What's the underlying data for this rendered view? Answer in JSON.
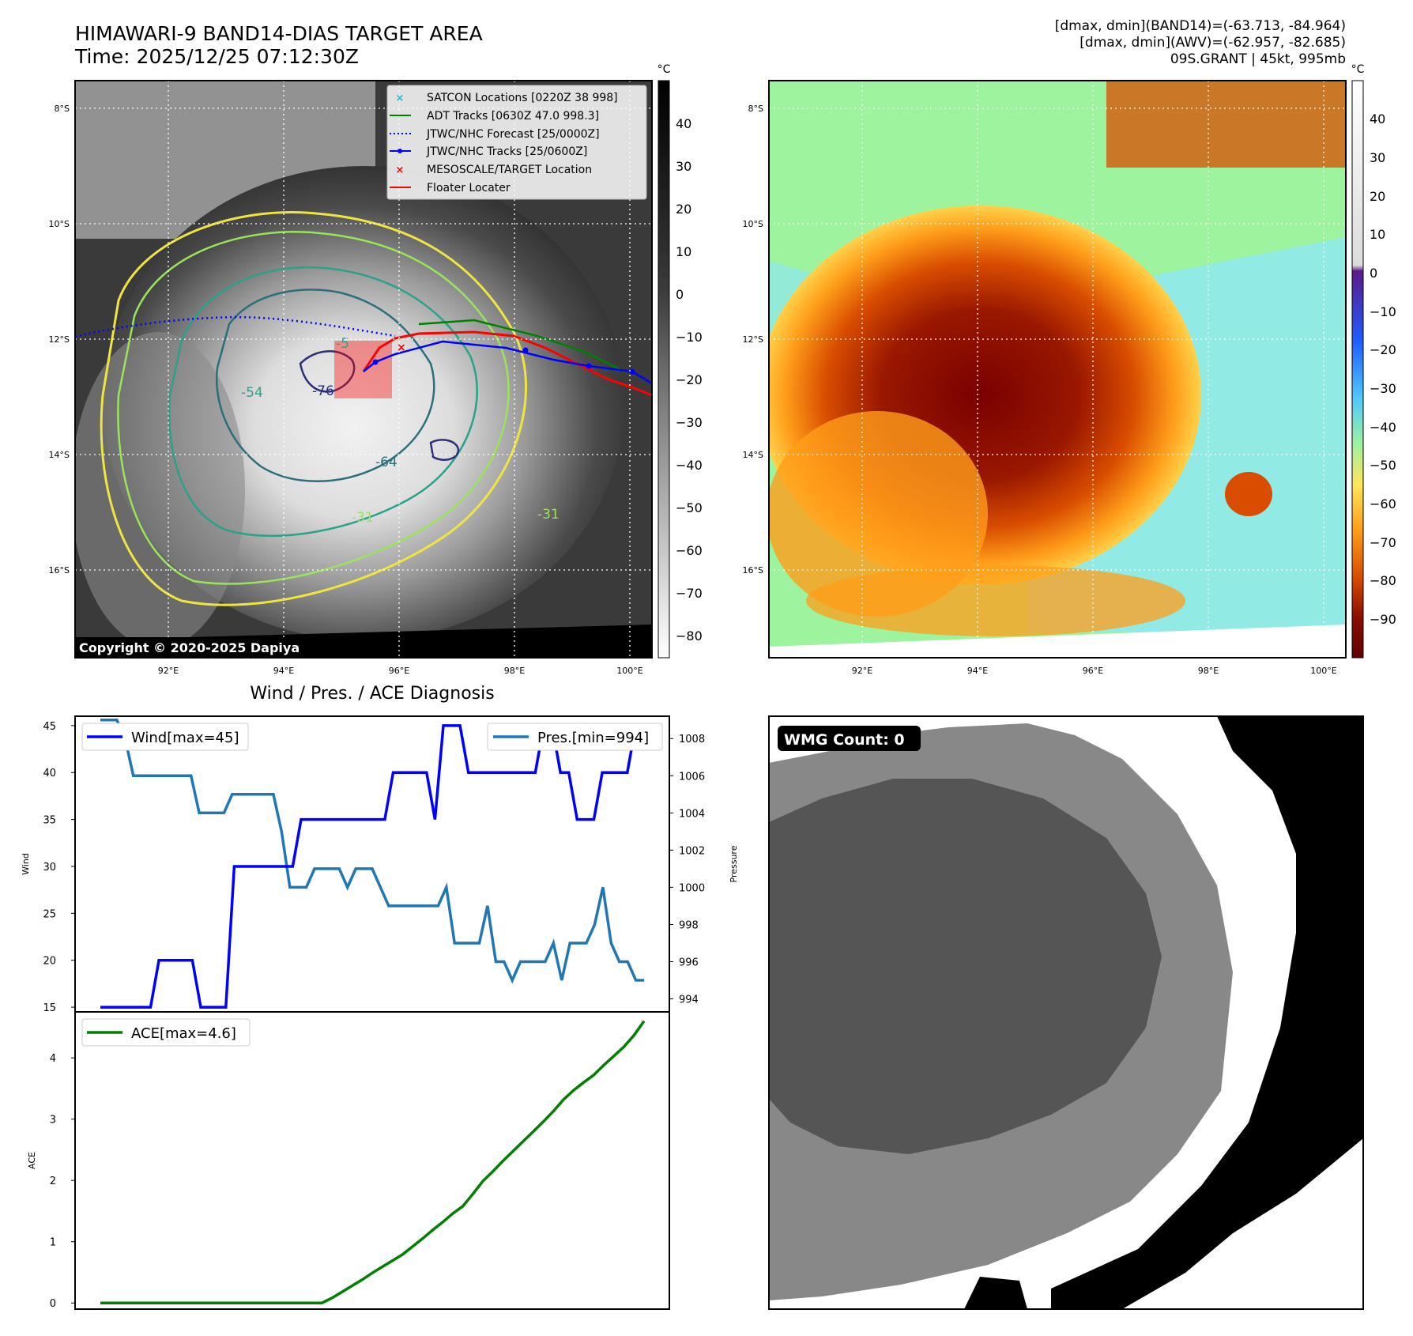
{
  "header": {
    "title_line1": "HIMAWARI-9 BAND14-DIAS TARGET AREA",
    "title_line2": "Time: 2025/12/25 07:12:30Z",
    "info_line1": "[dmax, dmin](BAND14)=(-63.713, -84.964)",
    "info_line2": "[dmax, dmin](AWV)=(-62.957, -82.685)",
    "info_line3": "09S.GRANT | 45kt, 995mb"
  },
  "map": {
    "lat_labels": [
      "8°S",
      "10°S",
      "12°S",
      "14°S",
      "16°S"
    ],
    "lon_labels": [
      "92°E",
      "94°E",
      "96°E",
      "98°E",
      "100°E"
    ],
    "copyright": "Copyright © 2020-2025 Dapiya",
    "contour_labels": [
      "-76",
      "-64",
      "-54",
      "-31",
      "-5",
      "-31"
    ],
    "legend": [
      {
        "label": "SATCON Locations [0220Z 38 998]",
        "color": "#17becf",
        "style": "x"
      },
      {
        "label": "ADT Tracks [0630Z 47.0 998.3]",
        "color": "#008000",
        "style": "line"
      },
      {
        "label": "JTWC/NHC Forecast [25/0000Z]",
        "color": "#0000ff",
        "style": "dotted"
      },
      {
        "label": "JTWC/NHC Tracks [25/0600Z]",
        "color": "#0000ff",
        "style": "line-dot"
      },
      {
        "label": "MESOSCALE/TARGET Location",
        "color": "#ff0000",
        "style": "x"
      },
      {
        "label": "Floater Locater",
        "color": "#ff0000",
        "style": "line"
      }
    ]
  },
  "colorbar_left": {
    "unit": "°C",
    "ticks": [
      "40",
      "30",
      "20",
      "10",
      "0",
      "−10",
      "−20",
      "−30",
      "−40",
      "−50",
      "−60",
      "−70",
      "−80"
    ]
  },
  "colorbar_right": {
    "unit": "°C",
    "ticks": [
      "40",
      "30",
      "20",
      "10",
      "0",
      "−10",
      "−20",
      "−30",
      "−40",
      "−50",
      "−60",
      "−70",
      "−80",
      "−90"
    ]
  },
  "diagnosis": {
    "title": "Wind / Pres. / ACE Diagnosis"
  },
  "wmg": {
    "label": "WMG Count: 0"
  },
  "colors": {
    "wind": "#0000ff",
    "pressure": "#1f77b4",
    "ace": "#008000",
    "grid": "#ffffff"
  },
  "chart_data": [
    {
      "type": "line",
      "title": "",
      "xlabel": "",
      "ylabel": "Wind",
      "ylim": [
        14.5,
        46
      ],
      "y_ticks": [
        15,
        20,
        25,
        30,
        35,
        40,
        45
      ],
      "series": [
        {
          "name": "Wind[max=45]",
          "color": "#0000ff",
          "values": [
            15,
            15,
            15,
            15,
            15,
            15,
            15,
            20,
            20,
            20,
            20,
            20,
            15,
            15,
            15,
            15,
            30,
            30,
            30,
            30,
            30,
            30,
            30,
            30,
            35,
            35,
            35,
            35,
            35,
            35,
            35,
            35,
            35,
            35,
            35,
            40,
            40,
            40,
            40,
            40,
            35,
            45,
            45,
            45,
            40,
            40,
            40,
            40,
            40,
            40,
            40,
            40,
            40,
            45,
            45,
            40,
            40,
            35,
            35,
            35,
            40,
            40,
            40,
            40,
            45,
            45
          ]
        }
      ]
    },
    {
      "type": "line",
      "title": "",
      "xlabel": "",
      "ylabel": "Pressure",
      "ylim": [
        993.3,
        1009.2
      ],
      "y_ticks": [
        994,
        996,
        998,
        1000,
        1002,
        1004,
        1006,
        1008
      ],
      "series": [
        {
          "name": "Pres.[min=994]",
          "color": "#1f77b4",
          "values": [
            1009,
            1009,
            1009,
            1008,
            1006,
            1006,
            1006,
            1006,
            1006,
            1006,
            1006,
            1006,
            1004,
            1004,
            1004,
            1004,
            1005,
            1005,
            1005,
            1005,
            1005,
            1005,
            1003,
            1000,
            1000,
            1000,
            1001,
            1001,
            1001,
            1001,
            1000,
            1001,
            1001,
            1001,
            1000,
            999,
            999,
            999,
            999,
            999,
            999,
            999,
            1000,
            997,
            997,
            997,
            997,
            999,
            996,
            996,
            995,
            996,
            996,
            996,
            996,
            997,
            995,
            997,
            997,
            997,
            998,
            1000,
            997,
            996,
            996,
            995,
            995
          ]
        }
      ]
    },
    {
      "type": "line",
      "title": "",
      "xlabel": "",
      "ylabel": "ACE",
      "ylim": [
        -0.1,
        4.75
      ],
      "y_ticks": [
        0,
        1,
        2,
        3,
        4
      ],
      "series": [
        {
          "name": "ACE[max=4.6]",
          "color": "#008000",
          "values": [
            0,
            0,
            0,
            0,
            0,
            0,
            0,
            0,
            0,
            0,
            0,
            0,
            0,
            0,
            0,
            0,
            0,
            0,
            0,
            0,
            0,
            0,
            0,
            0.08,
            0.18,
            0.28,
            0.38,
            0.49,
            0.59,
            0.69,
            0.79,
            0.92,
            1.05,
            1.19,
            1.32,
            1.46,
            1.58,
            1.78,
            1.99,
            2.15,
            2.32,
            2.48,
            2.64,
            2.8,
            2.96,
            3.13,
            3.32,
            3.47,
            3.6,
            3.72,
            3.88,
            4.03,
            4.18,
            4.37,
            4.6
          ]
        }
      ]
    }
  ]
}
